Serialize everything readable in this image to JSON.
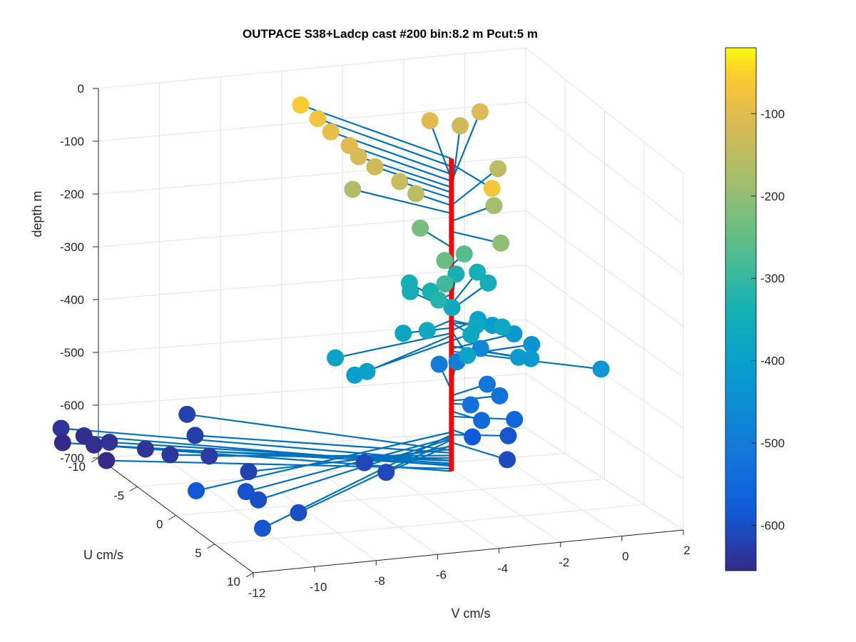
{
  "chart_data": {
    "type": "scatter",
    "title": "OUTPACE S38+Ladcp cast #200 bin:8.2 m  Pcut:5 m",
    "xlabel": "V cm/s",
    "ylabel": "U cm/s",
    "zlabel": "depth m",
    "xlim": [
      -12,
      2
    ],
    "ylim": [
      -10,
      10
    ],
    "zlim": [
      -700,
      0
    ],
    "x_ticks": [
      "-12",
      "-10",
      "-8",
      "-6",
      "-4",
      "-2",
      "0",
      "2"
    ],
    "y_ticks": [
      "-10",
      "-5",
      "0",
      "5",
      "10"
    ],
    "z_ticks": [
      "0",
      "-100",
      "-200",
      "-300",
      "-400",
      "-500",
      "-600",
      "-700"
    ],
    "grid": true,
    "view": "3-D perspective",
    "colorbar": {
      "ticks": [
        "-100",
        "-200",
        "-300",
        "-400",
        "-500",
        "-600"
      ],
      "range": [
        -655,
        -20
      ],
      "colormap": "parula"
    },
    "stems": {
      "anchor": "u=0, v=-3 (red vertical line)",
      "line_color": "#0072BD",
      "anchor_color": "#FF0000"
    },
    "points": [
      {
        "v": -5.5,
        "u": -9.5,
        "depth": -60
      },
      {
        "v": -5.2,
        "u": -8.5,
        "depth": -75
      },
      {
        "v": -5.0,
        "u": -7.6,
        "depth": -90
      },
      {
        "v": -4.7,
        "u": -6.4,
        "depth": -103
      },
      {
        "v": -4.6,
        "u": -5.6,
        "depth": -115
      },
      {
        "v": -4.3,
        "u": -4.7,
        "depth": -125
      },
      {
        "v": -3.9,
        "u": -3.1,
        "depth": -136
      },
      {
        "v": -3.6,
        "u": -2.2,
        "depth": -150
      },
      {
        "v": -5.0,
        "u": -4.8,
        "depth": -165
      },
      {
        "v": -1.5,
        "u": -8.6,
        "depth": -100
      },
      {
        "v": -0.2,
        "u": -9.8,
        "depth": -130
      },
      {
        "v": -0.3,
        "u": -4.6,
        "depth": -150
      },
      {
        "v": 0.4,
        "u": -9.6,
        "depth": -105
      },
      {
        "v": -2.7,
        "u": 4.0,
        "depth": -70
      },
      {
        "v": -1.2,
        "u": -1.6,
        "depth": -180
      },
      {
        "v": -2.0,
        "u": 2.4,
        "depth": -200
      },
      {
        "v": -3.2,
        "u": -3.2,
        "depth": -230
      },
      {
        "v": -3.4,
        "u": 0.7,
        "depth": -245
      },
      {
        "v": -2.2,
        "u": -1.5,
        "depth": -265
      },
      {
        "v": -3.4,
        "u": 0.7,
        "depth": -290
      },
      {
        "v": -3.6,
        "u": 0.7,
        "depth": -320
      },
      {
        "v": -3.2,
        "u": -1.9,
        "depth": -335
      },
      {
        "v": -0.9,
        "u": -3.5,
        "depth": -350
      },
      {
        "v": -1.8,
        "u": -4.1,
        "depth": -335
      },
      {
        "v": -3.5,
        "u": -3.3,
        "depth": -350
      },
      {
        "v": -2.6,
        "u": -1.5,
        "depth": -365
      },
      {
        "v": -4.1,
        "u": 1.2,
        "depth": -370
      },
      {
        "v": -3.5,
        "u": 4.0,
        "depth": -390
      },
      {
        "v": -2.9,
        "u": 2.1,
        "depth": -375
      },
      {
        "v": -1.7,
        "u": 1.4,
        "depth": -375
      },
      {
        "v": -1.0,
        "u": -4.5,
        "depth": -340
      },
      {
        "v": -3.3,
        "u": -4.2,
        "depth": -345
      },
      {
        "v": -4.6,
        "u": 0.1,
        "depth": -385
      },
      {
        "v": -2.5,
        "u": 1.2,
        "depth": -370
      },
      {
        "v": -1.8,
        "u": -1.3,
        "depth": -390
      },
      {
        "v": -6.8,
        "u": 4.1,
        "depth": -400
      },
      {
        "v": -7.3,
        "u": 2.0,
        "depth": -395
      },
      {
        "v": -7.1,
        "u": 3.7,
        "depth": -410
      },
      {
        "v": -1.2,
        "u": 3.1,
        "depth": -420
      },
      {
        "v": -1.5,
        "u": 2.7,
        "depth": -420
      },
      {
        "v": -1.2,
        "u": -1.8,
        "depth": -410
      },
      {
        "v": -0.6,
        "u": -1.4,
        "depth": -425
      },
      {
        "v": -0.2,
        "u": -0.7,
        "depth": -440
      },
      {
        "v": 0.6,
        "u": 5.0,
        "depth": -430
      },
      {
        "v": -1.2,
        "u": -3.3,
        "depth": -470
      },
      {
        "v": -2.0,
        "u": -3.2,
        "depth": -490
      },
      {
        "v": -2.3,
        "u": -4.3,
        "depth": -505
      },
      {
        "v": -1.5,
        "u": -1.3,
        "depth": -515
      },
      {
        "v": -1.4,
        "u": -0.1,
        "depth": -525
      },
      {
        "v": -2.5,
        "u": 0.5,
        "depth": -530
      },
      {
        "v": -2.5,
        "u": 1.9,
        "depth": -545
      },
      {
        "v": -1.3,
        "u": 1.4,
        "depth": -555
      },
      {
        "v": -2.7,
        "u": 1.5,
        "depth": -580
      },
      {
        "v": -1.4,
        "u": 1.0,
        "depth": -590
      },
      {
        "v": -2.1,
        "u": 3.6,
        "depth": -605
      },
      {
        "v": -9.3,
        "u": -9.2,
        "depth": -620
      },
      {
        "v": -9.8,
        "u": -6.2,
        "depth": -625
      },
      {
        "v": -10.1,
        "u": -3.2,
        "depth": -630
      },
      {
        "v": -11.1,
        "u": -4.3,
        "depth": -635
      },
      {
        "v": -11.5,
        "u": -5.9,
        "depth": -640
      },
      {
        "v": -12.2,
        "u": -7.8,
        "depth": -645
      },
      {
        "v": -12.6,
        "u": -9.5,
        "depth": -650
      },
      {
        "v": -13.2,
        "u": -10.1,
        "depth": -640
      },
      {
        "v": -6.0,
        "u": 3.4,
        "depth": -610
      },
      {
        "v": -6.2,
        "u": 1.4,
        "depth": -612
      },
      {
        "v": -9.8,
        "u": 0.7,
        "depth": -618
      },
      {
        "v": -12.7,
        "u": -7.8,
        "depth": -648
      },
      {
        "v": -12.8,
        "u": -5.8,
        "depth": -655
      },
      {
        "v": -13.3,
        "u": -9.5,
        "depth": -660
      },
      {
        "v": -10.3,
        "u": 9.1,
        "depth": -600
      },
      {
        "v": -11.0,
        "u": 6.7,
        "depth": -598
      },
      {
        "v": -11.1,
        "u": 5.5,
        "depth": -595
      },
      {
        "v": -12.7,
        "u": 5.4,
        "depth": -585
      },
      {
        "v": -12.1,
        "u": 11.6,
        "depth": -590
      }
    ]
  }
}
